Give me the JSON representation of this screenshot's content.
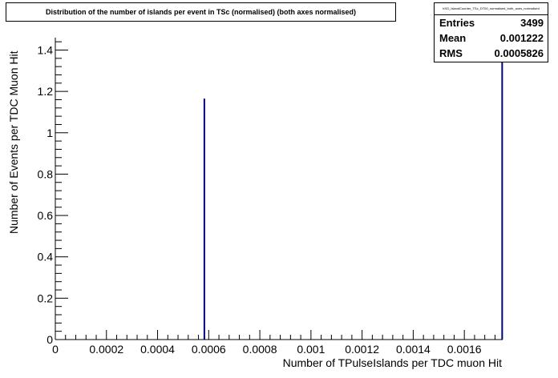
{
  "chart_data": {
    "type": "bar",
    "title": "Distribution of the number of islands per event in TSc (normalised) (both axes normalised)",
    "xlabel": "Number of TPulseIslands per TDC muon Hit",
    "ylabel": "Number of Events per TDC Muon Hit",
    "xlim": [
      0,
      0.00175
    ],
    "ylim": [
      0,
      1.46
    ],
    "x_ticks": [
      {
        "value": 0,
        "label": "0"
      },
      {
        "value": 0.0002,
        "label": "0.0002"
      },
      {
        "value": 0.0004,
        "label": "0.0004"
      },
      {
        "value": 0.0006,
        "label": "0.0006"
      },
      {
        "value": 0.0008,
        "label": "0.0008"
      },
      {
        "value": 0.001,
        "label": "0.001"
      },
      {
        "value": 0.0012,
        "label": "0.0012"
      },
      {
        "value": 0.0014,
        "label": "0.0014"
      },
      {
        "value": 0.0016,
        "label": "0.0016"
      }
    ],
    "y_ticks": [
      {
        "value": 0,
        "label": "0"
      },
      {
        "value": 0.2,
        "label": "0.2"
      },
      {
        "value": 0.4,
        "label": "0.4"
      },
      {
        "value": 0.6,
        "label": "0.6"
      },
      {
        "value": 0.8,
        "label": "0.8"
      },
      {
        "value": 1,
        "label": "1"
      },
      {
        "value": 1.2,
        "label": "1.2"
      },
      {
        "value": 1.4,
        "label": "1.4"
      }
    ],
    "bins": [
      {
        "x": 0.000583,
        "value": 1.165
      },
      {
        "x": 0.001748,
        "value": 1.46
      }
    ],
    "grid": false,
    "color": "#000080",
    "stats": {
      "name": "hSG_IslandCounter_TSc_DT00_normalised_both_axes_normalised",
      "rows": [
        {
          "label": "Entries",
          "value": "3499"
        },
        {
          "label": "Mean",
          "value": "0.001222"
        },
        {
          "label": "RMS",
          "value": "0.0005826"
        }
      ]
    }
  }
}
